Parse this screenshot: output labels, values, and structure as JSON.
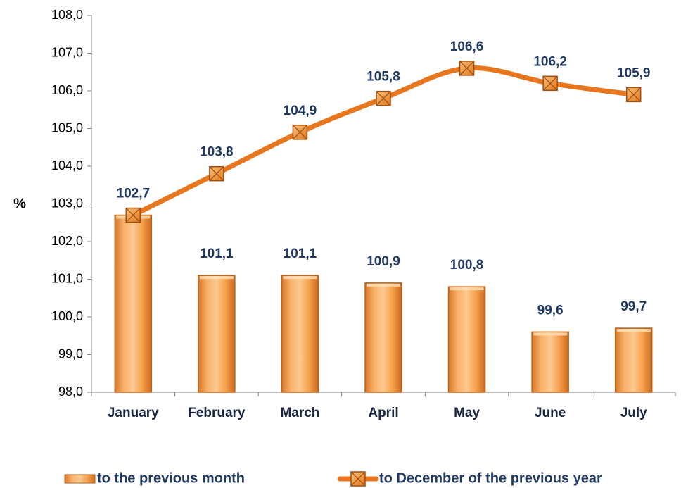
{
  "chart_data": {
    "type": "bar",
    "y_label": "%",
    "categories": [
      "January",
      "February",
      "March",
      "April",
      "May",
      "June",
      "July"
    ],
    "series": [
      {
        "name": "to the previous month",
        "type": "bar",
        "color": "#f5a04a",
        "values": [
          102.7,
          101.1,
          101.1,
          100.9,
          100.8,
          99.6,
          99.7
        ],
        "value_labels": [
          "102,7",
          "101,1",
          "101,1",
          "100,9",
          "100,8",
          "99,6",
          "99,7"
        ]
      },
      {
        "name": "to December of the previous year",
        "type": "line",
        "color": "#e8761e",
        "values": [
          102.7,
          103.8,
          104.9,
          105.8,
          106.6,
          106.2,
          105.9
        ],
        "value_labels": [
          "102,7",
          "103,8",
          "104,9",
          "105,8",
          "106,6",
          "106,2",
          "105,9"
        ]
      }
    ],
    "ylim": [
      98,
      108
    ],
    "yticks": [
      {
        "value": 98,
        "label": "98,0"
      },
      {
        "value": 99,
        "label": "99,0"
      },
      {
        "value": 100,
        "label": "100,0"
      },
      {
        "value": 101,
        "label": "101,0"
      },
      {
        "value": 102,
        "label": "102,0"
      },
      {
        "value": 103,
        "label": "103,0"
      },
      {
        "value": 104,
        "label": "104,0"
      },
      {
        "value": 105,
        "label": "105,0"
      },
      {
        "value": 106,
        "label": "106,0"
      },
      {
        "value": 107,
        "label": "107,0"
      },
      {
        "value": 108,
        "label": "108,0"
      }
    ],
    "grid": false,
    "legend": "bottom"
  }
}
